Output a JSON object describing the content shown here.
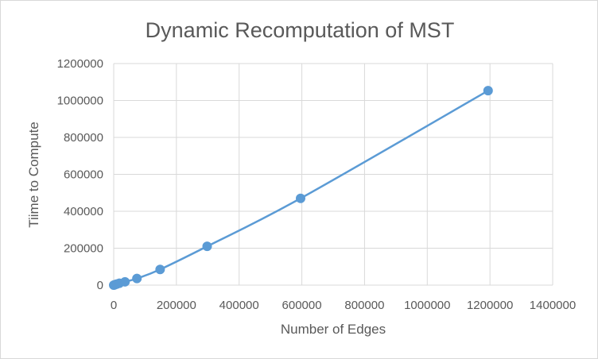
{
  "chart_data": {
    "type": "scatter",
    "title": "Dynamic Recomputation of MST",
    "xlabel": "Number of Edges",
    "ylabel": "Tiime to Compute",
    "xlim": [
      0,
      1400000
    ],
    "ylim": [
      0,
      1200000
    ],
    "x_ticks": [
      0,
      200000,
      400000,
      600000,
      800000,
      1000000,
      1200000,
      1400000
    ],
    "y_ticks": [
      0,
      200000,
      400000,
      600000,
      800000,
      1000000,
      1200000
    ],
    "grid": true,
    "legend": "none",
    "series_color": "#5b9bd5",
    "series": [
      {
        "x": [
          0,
          2000,
          5000,
          10000,
          18000,
          36000,
          74000,
          148000,
          298000,
          596000,
          1194000
        ],
        "y": [
          0,
          1000,
          3000,
          6000,
          10000,
          18000,
          36000,
          85000,
          210000,
          470000,
          1053000
        ]
      }
    ]
  }
}
